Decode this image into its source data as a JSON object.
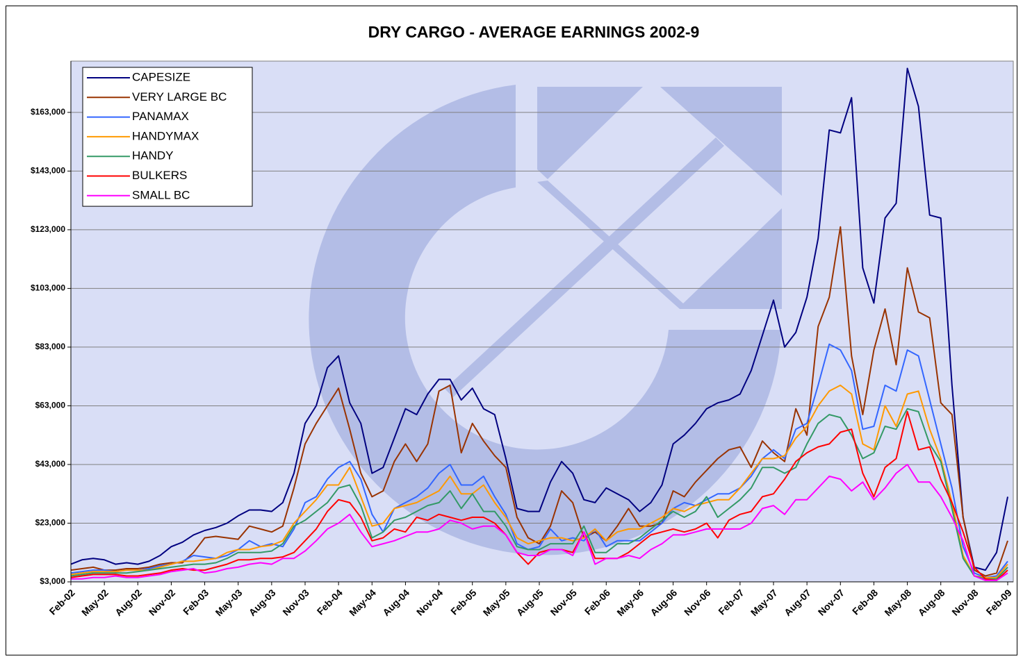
{
  "chart_data": {
    "type": "line",
    "title": "DRY CARGO - AVERAGE EARNINGS 2002-9",
    "categories": [
      "Feb-02",
      null,
      null,
      "May-02",
      null,
      null,
      "Aug-02",
      null,
      null,
      "Nov-02",
      null,
      null,
      "Feb-03",
      null,
      null,
      "May-03",
      null,
      null,
      "Aug-03",
      null,
      null,
      "Nov-03",
      null,
      null,
      "Feb-04",
      null,
      null,
      "May-04",
      null,
      null,
      "Aug-04",
      null,
      null,
      "Nov-04",
      null,
      null,
      "Feb-05",
      null,
      null,
      "May-05",
      null,
      null,
      "Aug-05",
      null,
      null,
      "Nov-05",
      null,
      null,
      "Feb-06",
      null,
      null,
      "May-06",
      null,
      null,
      "Aug-06",
      null,
      null,
      "Nov-06",
      null,
      null,
      "Feb-07",
      null,
      null,
      "May-07",
      null,
      null,
      "Aug-07",
      null,
      null,
      "Nov-07",
      null,
      null,
      "Feb-08",
      null,
      null,
      "May-08",
      null,
      null,
      "Aug-08",
      null,
      null,
      "Nov-08",
      null,
      null,
      "Feb-09"
    ],
    "series": [
      {
        "name": "CAPESIZE",
        "color": "#000080",
        "values": [
          9000,
          10500,
          11000,
          10500,
          9000,
          9500,
          9000,
          10000,
          12000,
          15000,
          16500,
          19000,
          20500,
          21500,
          23000,
          25500,
          27500,
          27500,
          27000,
          30000,
          40000,
          57000,
          63000,
          76000,
          80000,
          64000,
          57000,
          40000,
          42000,
          52000,
          62000,
          60000,
          67000,
          72000,
          72000,
          65000,
          69000,
          62000,
          60000,
          45000,
          28000,
          27000,
          27000,
          37000,
          44000,
          40000,
          31000,
          30000,
          35000,
          33000,
          31000,
          27000,
          30000,
          36000,
          50000,
          53000,
          57000,
          62000,
          64000,
          65000,
          67000,
          75000,
          87000,
          99000,
          83000,
          88000,
          100000,
          120000,
          157000,
          156000,
          168000,
          110000,
          98000,
          127000,
          132000,
          178000,
          165000,
          128000,
          127000,
          70000,
          25000,
          8000,
          7000,
          13000,
          32000
        ]
      },
      {
        "name": "VERY LARGE BC",
        "color": "#993300",
        "values": [
          7000,
          7500,
          8000,
          7000,
          7000,
          7500,
          7500,
          8000,
          9000,
          9500,
          9500,
          13000,
          18000,
          18500,
          18000,
          17500,
          22000,
          21000,
          20000,
          22000,
          35000,
          50000,
          57000,
          63000,
          69000,
          55000,
          40000,
          32000,
          34000,
          44000,
          50000,
          44000,
          50000,
          68000,
          70000,
          47000,
          57000,
          51000,
          46000,
          42000,
          25000,
          18000,
          16000,
          22000,
          34000,
          30000,
          18000,
          20000,
          17000,
          22000,
          28000,
          22000,
          22000,
          23000,
          34000,
          32000,
          37000,
          41000,
          45000,
          48000,
          49000,
          42000,
          51000,
          47000,
          44000,
          62000,
          53000,
          90000,
          100000,
          124000,
          80000,
          60000,
          82000,
          96000,
          77000,
          110000,
          95000,
          93000,
          64000,
          60000,
          25000,
          7000,
          5000,
          6000,
          17000
        ]
      },
      {
        "name": "PANAMAX",
        "color": "#3366ff",
        "values": [
          6000,
          6500,
          7000,
          7000,
          6500,
          7000,
          7000,
          7500,
          8500,
          9000,
          10000,
          12000,
          11500,
          11000,
          12000,
          14000,
          17000,
          15000,
          16000,
          15000,
          21000,
          30000,
          32000,
          38000,
          42000,
          44000,
          38000,
          26000,
          20000,
          28000,
          30000,
          32000,
          35000,
          40000,
          43000,
          36000,
          36000,
          39000,
          32000,
          26000,
          16000,
          14000,
          15000,
          21000,
          17000,
          18000,
          17000,
          21000,
          15000,
          17000,
          17000,
          17000,
          20000,
          23000,
          28000,
          30000,
          29000,
          31000,
          33000,
          33000,
          35000,
          39000,
          45000,
          48000,
          45000,
          55000,
          57000,
          70000,
          84000,
          82000,
          75000,
          55000,
          56000,
          70000,
          68000,
          82000,
          80000,
          65000,
          50000,
          35000,
          15000,
          6000,
          4500,
          5000,
          10000
        ]
      },
      {
        "name": "HANDYMAX",
        "color": "#ff9900",
        "values": [
          5500,
          6000,
          6500,
          6500,
          6500,
          7000,
          7000,
          7000,
          8000,
          9000,
          10000,
          10000,
          10500,
          11000,
          13000,
          14000,
          14000,
          15000,
          15500,
          17000,
          23000,
          27000,
          31000,
          36000,
          36000,
          42000,
          32000,
          22000,
          23000,
          28000,
          29000,
          30000,
          32000,
          34000,
          39000,
          33000,
          33000,
          36000,
          30000,
          25000,
          18000,
          16000,
          17000,
          18000,
          18000,
          17000,
          18000,
          21000,
          17000,
          20000,
          21000,
          21000,
          23000,
          25000,
          28000,
          27000,
          29000,
          30000,
          31000,
          31000,
          35000,
          40000,
          45000,
          45000,
          46000,
          52000,
          56000,
          63000,
          68000,
          70000,
          67000,
          50000,
          48000,
          63000,
          56000,
          67000,
          68000,
          55000,
          45000,
          30000,
          12000,
          5000,
          4500,
          4500,
          9000
        ]
      },
      {
        "name": "HANDY",
        "color": "#339966",
        "values": [
          5000,
          5500,
          6000,
          6000,
          6000,
          6000,
          6500,
          7000,
          7500,
          8000,
          8500,
          9000,
          9000,
          9500,
          11000,
          13000,
          13000,
          13000,
          13500,
          16000,
          22000,
          24000,
          27000,
          30000,
          35000,
          36000,
          29000,
          18000,
          20000,
          24000,
          25000,
          27000,
          29000,
          30000,
          34000,
          28000,
          33000,
          27000,
          27000,
          22000,
          15000,
          14000,
          14000,
          16000,
          16000,
          16000,
          22000,
          13000,
          13000,
          16000,
          16000,
          18000,
          21000,
          24000,
          27000,
          25000,
          27000,
          32000,
          25000,
          28000,
          31000,
          35000,
          42000,
          42000,
          40000,
          42000,
          50000,
          57000,
          60000,
          59000,
          53000,
          45000,
          47000,
          56000,
          55000,
          62000,
          61000,
          50000,
          44000,
          28000,
          11000,
          5000,
          4000,
          4000,
          8000
        ]
      },
      {
        "name": "BULKERS",
        "color": "#ff0000",
        "values": [
          4500,
          5000,
          5500,
          5500,
          5500,
          5000,
          5000,
          5500,
          6000,
          7000,
          7500,
          7000,
          7000,
          8000,
          9000,
          10500,
          10500,
          11000,
          11000,
          11500,
          13000,
          17000,
          21000,
          27000,
          31000,
          30000,
          25000,
          17000,
          18000,
          21000,
          20000,
          25000,
          24000,
          26000,
          25000,
          24000,
          25000,
          25000,
          23000,
          19000,
          13000,
          9000,
          13000,
          14000,
          14000,
          13000,
          20000,
          11000,
          11000,
          11000,
          13000,
          16000,
          19000,
          20000,
          21000,
          20000,
          21000,
          23000,
          18000,
          24000,
          26000,
          27000,
          32000,
          33000,
          38000,
          44000,
          47000,
          49000,
          50000,
          54000,
          55000,
          40000,
          32000,
          42000,
          45000,
          61000,
          48000,
          49000,
          38000,
          30000,
          20000,
          8000,
          4000,
          3500,
          7000
        ]
      },
      {
        "name": "SMALL BC",
        "color": "#ff00ff",
        "values": [
          4000,
          4000,
          4500,
          4500,
          5000,
          4500,
          4500,
          5000,
          5500,
          6500,
          7000,
          7500,
          6000,
          6500,
          7500,
          8000,
          9000,
          9500,
          9000,
          11000,
          11000,
          13500,
          17000,
          21000,
          23000,
          26000,
          20000,
          15000,
          16000,
          17000,
          18500,
          20000,
          20000,
          21000,
          24000,
          23000,
          21000,
          22000,
          22000,
          19000,
          13000,
          12000,
          12000,
          14000,
          14000,
          12000,
          20000,
          9000,
          11000,
          11000,
          12000,
          11000,
          14000,
          16000,
          19000,
          19000,
          20000,
          21000,
          21000,
          21000,
          21000,
          23000,
          28000,
          29000,
          26000,
          31000,
          31000,
          35000,
          39000,
          38000,
          34000,
          37000,
          31000,
          35000,
          40000,
          43000,
          37000,
          37000,
          32000,
          25000,
          17000,
          5000,
          3500,
          3500,
          6000
        ]
      }
    ],
    "ylim": [
      3000,
      180000
    ],
    "yticks": [
      {
        "value": 3000,
        "label": "$3,000"
      },
      {
        "value": 23000,
        "label": "$23,000"
      },
      {
        "value": 43000,
        "label": "$43,000"
      },
      {
        "value": 63000,
        "label": "$63,000"
      },
      {
        "value": 83000,
        "label": "$83,000"
      },
      {
        "value": 103000,
        "label": "$103,000"
      },
      {
        "value": 123000,
        "label": "$123,000"
      },
      {
        "value": 143000,
        "label": "$143,000"
      },
      {
        "value": 163000,
        "label": "$163,000"
      }
    ],
    "grid": true,
    "legend": "upper left"
  }
}
